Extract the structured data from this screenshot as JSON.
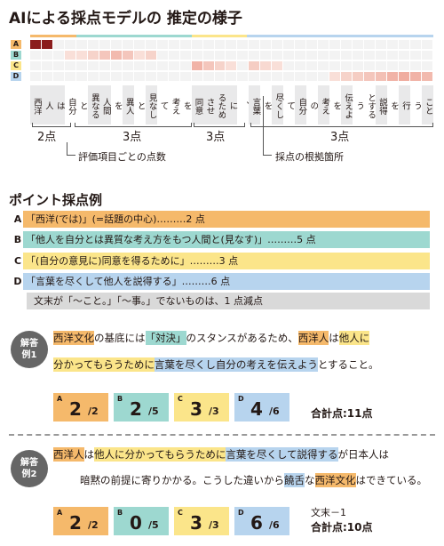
{
  "title": "AIによる採点モデルの 推定の様子",
  "colors": {
    "A": "#f5b96b",
    "B": "#9dd8d0",
    "C": "#fbe58a",
    "D": "#b7d4ee",
    "gray": "#d9d9d9"
  },
  "heatmap": {
    "row_labels": [
      "A",
      "B",
      "C",
      "D"
    ],
    "tokens": [
      "西洋",
      "人",
      "は",
      "自分",
      "と",
      "異なる",
      "人間",
      "を",
      "異人",
      "と",
      "見なし",
      "て",
      "考え",
      "を",
      "同意",
      "させ",
      "るため",
      "に",
      "、",
      "言葉",
      "を",
      "尽くし",
      "て",
      "自分",
      "の",
      "考え",
      "を",
      "伝えよ",
      "う",
      "とする",
      "説得",
      "を",
      "行",
      "う",
      "こと"
    ],
    "intensity": {
      "A": [
        0.95,
        0.95,
        0,
        0,
        0,
        0,
        0,
        0,
        0,
        0,
        0,
        0,
        0,
        0,
        0,
        0,
        0,
        0,
        0,
        0,
        0,
        0,
        0,
        0,
        0,
        0,
        0,
        0,
        0,
        0,
        0,
        0,
        0,
        0,
        0
      ],
      "B": [
        0,
        0,
        0,
        0.1,
        0.1,
        0.2,
        0.3,
        0.4,
        0.3,
        0.1,
        0.2,
        0,
        0,
        0,
        0,
        0,
        0,
        0,
        0,
        0,
        0,
        0,
        0,
        0,
        0,
        0,
        0,
        0,
        0,
        0,
        0,
        0,
        0,
        0,
        0
      ],
      "C": [
        0,
        0,
        0,
        0,
        0,
        0,
        0,
        0,
        0,
        0,
        0,
        0,
        0,
        0,
        0.45,
        0.3,
        0.2,
        0.1,
        0,
        0.25,
        0.15,
        0.1,
        0,
        0,
        0,
        0,
        0,
        0,
        0,
        0,
        0,
        0,
        0,
        0,
        0
      ],
      "D": [
        0,
        0,
        0,
        0,
        0,
        0,
        0,
        0,
        0,
        0,
        0,
        0,
        0,
        0,
        0,
        0,
        0,
        0,
        0,
        0,
        0,
        0,
        0,
        0,
        0,
        0,
        0.1,
        0.2,
        0.25,
        0.3,
        0.35,
        0.45,
        0.5,
        0.45,
        0.4
      ]
    }
  },
  "points": {
    "p1": "2点",
    "p2": "3点",
    "p3": "3点",
    "p4": "3点"
  },
  "labels": {
    "items": "評価項目ごとの点数",
    "basis": "採点の根拠箇所"
  },
  "section_title": "ポイント採点例",
  "rules": [
    {
      "tag": "A",
      "text": "「西洋(では)」(=話題の中心)………2 点"
    },
    {
      "tag": "B",
      "text": "「他人を自分とは異質な考え方をもつ人間と(見なす)」………5 点"
    },
    {
      "tag": "C",
      "text": "「(自分の意見に)同意を得るために」………3 点"
    },
    {
      "tag": "D",
      "text": "「言葉を尽くして他人を説得する」………6 点"
    },
    {
      "tag": "",
      "text": "文末が「～こと。」「～事。」でないものは、1 点減点"
    }
  ],
  "example1": {
    "badge": "解答\n例1",
    "line1": [
      {
        "t": "西洋文化",
        "h": "A"
      },
      {
        "t": "の基底には",
        "h": ""
      },
      {
        "t": "「対決」",
        "h": "B"
      },
      {
        "t": "のスタンスがあるため、",
        "h": ""
      },
      {
        "t": "西洋人",
        "h": "A"
      },
      {
        "t": "は",
        "h": ""
      },
      {
        "t": "他人に",
        "h": "C"
      }
    ],
    "line2": [
      {
        "t": "分かってもらうために",
        "h": "C"
      },
      {
        "t": "言葉を尽くし自分の考えを伝えよう",
        "h": "D"
      },
      {
        "t": "とすること。",
        "h": ""
      }
    ],
    "scores": [
      {
        "tag": "A",
        "v": "2",
        "s": "/2"
      },
      {
        "tag": "B",
        "v": "2",
        "s": "/5"
      },
      {
        "tag": "C",
        "v": "3",
        "s": "/3"
      },
      {
        "tag": "D",
        "v": "4",
        "s": "/6"
      }
    ],
    "total": "合計点:11点",
    "note": ""
  },
  "example2": {
    "badge": "解答\n例2",
    "line1": [
      {
        "t": "西洋人",
        "h": "A"
      },
      {
        "t": "は",
        "h": ""
      },
      {
        "t": "他人に分かってもらうために",
        "h": "C"
      },
      {
        "t": "言葉を尽くして説得する",
        "h": "D"
      },
      {
        "t": "が日本人は",
        "h": ""
      }
    ],
    "line2": [
      {
        "t": "暗黙の前提に寄りかかる。こうした違いから",
        "h": ""
      },
      {
        "t": "饒舌",
        "h": "D"
      },
      {
        "t": "な",
        "h": ""
      },
      {
        "t": "西洋文化",
        "h": "A"
      },
      {
        "t": "はできている。",
        "h": ""
      }
    ],
    "scores": [
      {
        "tag": "A",
        "v": "2",
        "s": "/2"
      },
      {
        "tag": "B",
        "v": "0",
        "s": "/5"
      },
      {
        "tag": "C",
        "v": "3",
        "s": "/3"
      },
      {
        "tag": "D",
        "v": "6",
        "s": "/6"
      }
    ],
    "total": "合計点:10点",
    "note": "文末－1"
  }
}
